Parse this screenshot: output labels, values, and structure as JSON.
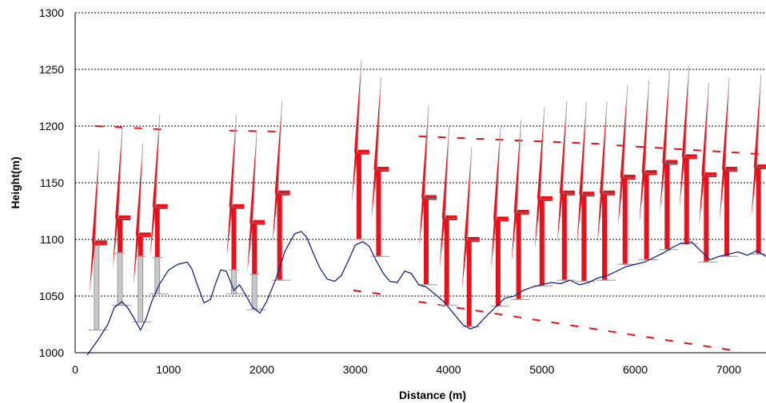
{
  "chart_data": {
    "type": "line",
    "xlabel": "Distance (m)",
    "ylabel": "Height(m)",
    "xlim": [
      0,
      7400
    ],
    "ylim": [
      1000,
      1300
    ],
    "x_ticks": [
      0,
      1000,
      2000,
      3000,
      4000,
      5000,
      6000,
      7000
    ],
    "y_ticks": [
      1000,
      1050,
      1100,
      1150,
      1200,
      1250,
      1300
    ],
    "grid": "horizontal dotted",
    "legend": "none",
    "colors": {
      "terrain": "#1a237e",
      "turbine_visible": "#e8101a",
      "turbine_hidden": "#c8c8c8",
      "sightline": "#e8101a",
      "grid": "#000000"
    },
    "series": [
      {
        "type": "line",
        "x": [
          130,
          250,
          350,
          420,
          500,
          560,
          620,
          700,
          760,
          820,
          900,
          1000,
          1100,
          1200,
          1250,
          1300,
          1380,
          1450,
          1500,
          1560,
          1620,
          1700,
          1760,
          1820,
          1900,
          1980,
          2050,
          2150,
          2250,
          2350,
          2420,
          2480,
          2550,
          2620,
          2700,
          2780,
          2850,
          2920,
          3000,
          3080,
          3150,
          3220,
          3300,
          3370,
          3450,
          3530,
          3600,
          3680,
          3760,
          3850,
          3950,
          4050,
          4150,
          4230,
          4300,
          4400,
          4500,
          4600,
          4700,
          4800,
          4900,
          5000,
          5100,
          5200,
          5300,
          5400,
          5500,
          5600,
          5700,
          5800,
          5900,
          6000,
          6100,
          6200,
          6300,
          6400,
          6500,
          6550,
          6600,
          6650,
          6700,
          6800,
          6900,
          7000,
          7100,
          7200,
          7300,
          7400
        ],
        "y": [
          998,
          1012,
          1025,
          1040,
          1045,
          1040,
          1032,
          1020,
          1030,
          1045,
          1060,
          1073,
          1078,
          1080,
          1074,
          1062,
          1044,
          1047,
          1060,
          1073,
          1072,
          1055,
          1060,
          1052,
          1040,
          1035,
          1045,
          1065,
          1090,
          1105,
          1107,
          1102,
          1088,
          1075,
          1065,
          1063,
          1068,
          1080,
          1095,
          1098,
          1094,
          1082,
          1070,
          1063,
          1062,
          1072,
          1070,
          1060,
          1058,
          1052,
          1045,
          1035,
          1025,
          1021,
          1023,
          1032,
          1040,
          1048,
          1050,
          1055,
          1058,
          1060,
          1062,
          1061,
          1064,
          1060,
          1062,
          1066,
          1068,
          1072,
          1076,
          1078,
          1080,
          1084,
          1088,
          1093,
          1097,
          1096,
          1098,
          1094,
          1090,
          1082,
          1085,
          1087,
          1089,
          1086,
          1090,
          1085
        ]
      }
    ],
    "turbines": [
      {
        "x": 230,
        "base": 1020,
        "hub": 1097,
        "vis": 1095,
        "tip": 1178
      },
      {
        "x": 480,
        "base": 1042,
        "hub": 1119,
        "vis": 1088,
        "tip": 1200
      },
      {
        "x": 700,
        "base": 1027,
        "hub": 1104,
        "vis": 1085,
        "tip": 1185
      },
      {
        "x": 880,
        "base": 1052,
        "hub": 1129,
        "vis": 1084,
        "tip": 1210
      },
      {
        "x": 1700,
        "base": 1052,
        "hub": 1129,
        "vis": 1073,
        "tip": 1210
      },
      {
        "x": 1920,
        "base": 1038,
        "hub": 1115,
        "vis": 1069,
        "tip": 1196
      },
      {
        "x": 2190,
        "base": 1064,
        "hub": 1141,
        "vis": 1064,
        "tip": 1222
      },
      {
        "x": 3040,
        "base": 1100,
        "hub": 1177,
        "vis": 1100,
        "tip": 1258
      },
      {
        "x": 3250,
        "base": 1085,
        "hub": 1162,
        "vis": 1085,
        "tip": 1243
      },
      {
        "x": 3760,
        "base": 1060,
        "hub": 1137,
        "vis": 1060,
        "tip": 1218
      },
      {
        "x": 3980,
        "base": 1042,
        "hub": 1119,
        "vis": 1042,
        "tip": 1200
      },
      {
        "x": 4220,
        "base": 1023,
        "hub": 1100,
        "vis": 1023,
        "tip": 1181
      },
      {
        "x": 4530,
        "base": 1041,
        "hub": 1118,
        "vis": 1041,
        "tip": 1199
      },
      {
        "x": 4750,
        "base": 1047,
        "hub": 1124,
        "vis": 1047,
        "tip": 1205
      },
      {
        "x": 5000,
        "base": 1059,
        "hub": 1136,
        "vis": 1059,
        "tip": 1217
      },
      {
        "x": 5240,
        "base": 1064,
        "hub": 1141,
        "vis": 1064,
        "tip": 1222
      },
      {
        "x": 5450,
        "base": 1063,
        "hub": 1140,
        "vis": 1063,
        "tip": 1221
      },
      {
        "x": 5670,
        "base": 1064,
        "hub": 1141,
        "vis": 1064,
        "tip": 1222
      },
      {
        "x": 5890,
        "base": 1078,
        "hub": 1155,
        "vis": 1078,
        "tip": 1236
      },
      {
        "x": 6120,
        "base": 1082,
        "hub": 1159,
        "vis": 1082,
        "tip": 1240
      },
      {
        "x": 6340,
        "base": 1091,
        "hub": 1168,
        "vis": 1091,
        "tip": 1249
      },
      {
        "x": 6550,
        "base": 1096,
        "hub": 1173,
        "vis": 1096,
        "tip": 1254
      },
      {
        "x": 6760,
        "base": 1080,
        "hub": 1157,
        "vis": 1080,
        "tip": 1238
      },
      {
        "x": 6980,
        "base": 1085,
        "hub": 1162,
        "vis": 1085,
        "tip": 1243
      },
      {
        "x": 7320,
        "base": 1087,
        "hub": 1164,
        "vis": 1087,
        "tip": 1245
      }
    ],
    "sightlines": [
      {
        "x": [
          220,
          950
        ],
        "y": [
          1200,
          1197
        ]
      },
      {
        "x": [
          1650,
          2230
        ],
        "y": [
          1196,
          1195
        ]
      },
      {
        "x": [
          2980,
          3350
        ],
        "y": [
          1055,
          1051
        ]
      },
      {
        "x": [
          3680,
          5700
        ],
        "y": [
          1191,
          1184
        ]
      },
      {
        "x": [
          5800,
          7400
        ],
        "y": [
          1183,
          1175
        ]
      },
      {
        "x": [
          3680,
          7050
        ],
        "y": [
          1045,
          1002
        ]
      }
    ]
  }
}
